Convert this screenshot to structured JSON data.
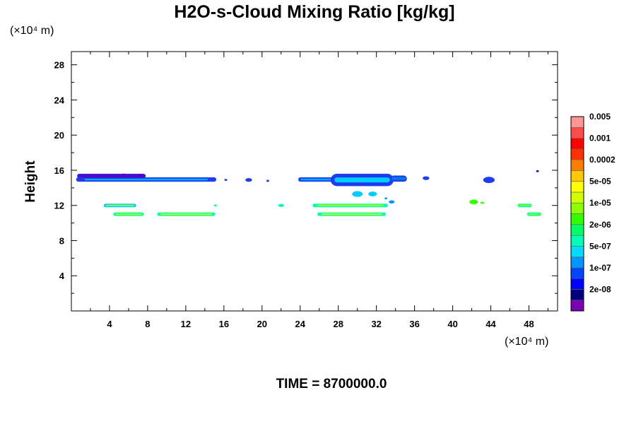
{
  "chart_data": {
    "type": "contour",
    "title": "H2O-s-Cloud Mixing Ratio [kg/kg]",
    "xlabel": "",
    "ylabel": "Height",
    "x_unit_note": "(×10⁴ m)",
    "y_unit_note": "(×10⁴ m)",
    "xlim": [
      0,
      51
    ],
    "ylim": [
      0,
      29.5
    ],
    "x_ticks": [
      4,
      8,
      12,
      16,
      20,
      24,
      28,
      32,
      36,
      40,
      44,
      48
    ],
    "y_ticks": [
      4,
      8,
      12,
      16,
      20,
      24,
      28
    ],
    "x_minor_step": 2,
    "y_minor_step": 2,
    "grid": false,
    "footer": "TIME = 8700000.0",
    "colorbar": {
      "placement": "right",
      "colors": [
        "#7b00b4",
        "#00007b",
        "#0000ff",
        "#0046ff",
        "#0096ff",
        "#00dcff",
        "#00ffb4",
        "#00ff64",
        "#32ff00",
        "#8cff00",
        "#d2ff00",
        "#ffff00",
        "#ffc800",
        "#ff7d00",
        "#ff3200",
        "#ff0000",
        "#ff4b4b",
        "#ff9696"
      ],
      "labels": [
        "2e-08",
        "1e-07",
        "5e-07",
        "2e-06",
        "1e-05",
        "5e-05",
        "0.0002",
        "0.001",
        "0.005"
      ]
    },
    "regions": [
      {
        "name": "upper-layer-west",
        "x": [
          0.5,
          15.2
        ],
        "y": [
          14.7,
          15.2
        ],
        "fill": "#1e3cf0",
        "core": "#00aaff"
      },
      {
        "name": "upper-layer-west-top",
        "x": [
          0.6,
          7.8
        ],
        "y": [
          15.1,
          15.6
        ],
        "fill": "#3a1ecf",
        "core": "#5a00c8"
      },
      {
        "name": "upper-layer-mid",
        "x": [
          23.8,
          27.5
        ],
        "y": [
          14.7,
          15.2
        ],
        "fill": "#1e3cf0",
        "core": "#00aaff"
      },
      {
        "name": "upper-layer-center",
        "x": [
          27.2,
          33.8
        ],
        "y": [
          14.2,
          15.6
        ],
        "fill": "#1e3cf0",
        "core": "#00ccff"
      },
      {
        "name": "upper-layer-east",
        "x": [
          33.5,
          35.2
        ],
        "y": [
          14.7,
          15.4
        ],
        "fill": "#2244dd",
        "core": "#0077ff"
      },
      {
        "name": "lower-band-1",
        "x": [
          3.4,
          6.8
        ],
        "y": [
          11.8,
          12.2
        ],
        "fill": "#00ccff",
        "core": "#88ff44"
      },
      {
        "name": "lower-band-2",
        "x": [
          4.4,
          7.6
        ],
        "y": [
          10.8,
          11.2
        ],
        "fill": "#00ffb4",
        "core": "#aaff00"
      },
      {
        "name": "lower-band-3",
        "x": [
          9.0,
          15.1
        ],
        "y": [
          10.8,
          11.2
        ],
        "fill": "#00ffb4",
        "core": "#ccff00"
      },
      {
        "name": "lower-band-4",
        "x": [
          25.3,
          33.2
        ],
        "y": [
          11.8,
          12.2
        ],
        "fill": "#00ffb4",
        "core": "#aaff00"
      },
      {
        "name": "lower-band-5",
        "x": [
          25.8,
          33.0
        ],
        "y": [
          10.8,
          11.2
        ],
        "fill": "#00ffb4",
        "core": "#ccff00"
      },
      {
        "name": "lower-band-6",
        "x": [
          46.8,
          48.3
        ],
        "y": [
          11.8,
          12.2
        ],
        "fill": "#00ffb4",
        "core": "#88ff00"
      },
      {
        "name": "lower-band-7",
        "x": [
          47.8,
          49.3
        ],
        "y": [
          10.8,
          11.2
        ],
        "fill": "#00ffb4",
        "core": "#88ff00"
      }
    ],
    "blobs": [
      {
        "x": 16.2,
        "y": 14.9,
        "r": 0.15,
        "fill": "#2040f0"
      },
      {
        "x": 18.6,
        "y": 14.9,
        "r": 0.35,
        "fill": "#1e3cf0"
      },
      {
        "x": 20.6,
        "y": 14.8,
        "r": 0.15,
        "fill": "#2040f0"
      },
      {
        "x": 37.2,
        "y": 15.1,
        "r": 0.35,
        "fill": "#1e3cf0"
      },
      {
        "x": 43.8,
        "y": 14.9,
        "r": 0.6,
        "fill": "#1e3cf0"
      },
      {
        "x": 48.9,
        "y": 15.9,
        "r": 0.15,
        "fill": "#5a00c8"
      },
      {
        "x": 30.0,
        "y": 13.3,
        "r": 0.55,
        "fill": "#00ccff"
      },
      {
        "x": 31.6,
        "y": 13.3,
        "r": 0.45,
        "fill": "#00ccff"
      },
      {
        "x": 33.6,
        "y": 12.4,
        "r": 0.3,
        "fill": "#0096ff"
      },
      {
        "x": 33.0,
        "y": 12.8,
        "r": 0.15,
        "fill": "#00aaff"
      },
      {
        "x": 22.0,
        "y": 12.0,
        "r": 0.3,
        "fill": "#00ffb4"
      },
      {
        "x": 15.1,
        "y": 12.0,
        "r": 0.15,
        "fill": "#00ffb4"
      },
      {
        "x": 42.2,
        "y": 12.4,
        "r": 0.45,
        "fill": "#32ff00"
      },
      {
        "x": 43.1,
        "y": 12.3,
        "r": 0.2,
        "fill": "#32ff00"
      },
      {
        "x": 7.3,
        "y": 15.4,
        "r": 0.3,
        "fill": "#5a00c8"
      },
      {
        "x": 3.5,
        "y": 15.4,
        "r": 0.2,
        "fill": "#5a00c8"
      },
      {
        "x": 5.5,
        "y": 15.5,
        "r": 0.2,
        "fill": "#5a00c8"
      }
    ]
  }
}
